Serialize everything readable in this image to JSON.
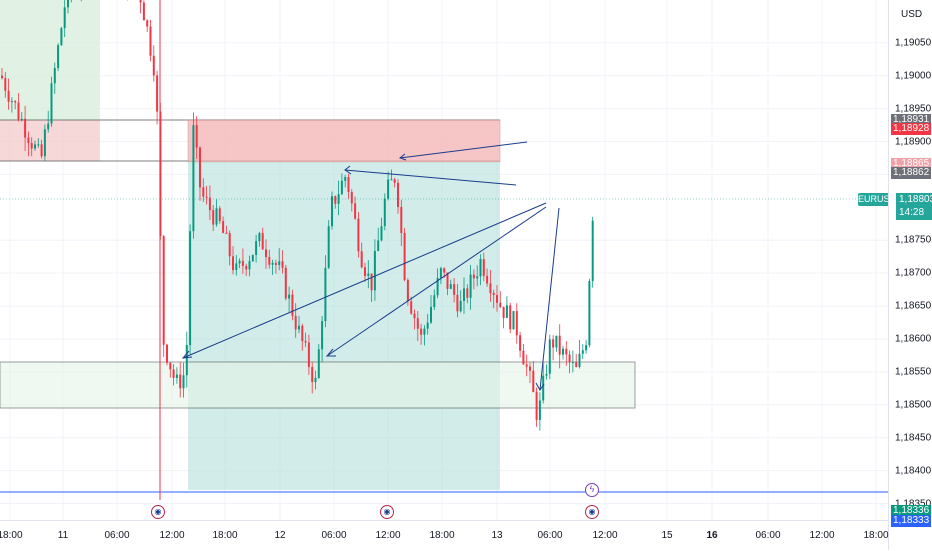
{
  "currency": "USD",
  "symbol": "EURUSD",
  "current_price": "1,18803",
  "countdown": "14:28",
  "price_range": [
    1.18325,
    1.19115
  ],
  "price_axis_labels": [
    "1,19050",
    "1,19000",
    "1,18950",
    "1,18900",
    "1,18850",
    "1,18750",
    "1,18700",
    "1,18650",
    "1,18600",
    "1,18550",
    "1,18500",
    "1,18450",
    "1,18400",
    "1,18350"
  ],
  "price_tags": [
    {
      "label": "1,18931",
      "price": 1.18931,
      "color": "#6e7079"
    },
    {
      "label": "1,18928",
      "price": 1.18928,
      "color": "#f23645"
    },
    {
      "label": "1,18865",
      "price": 1.18865,
      "color": "#f0a1a6"
    },
    {
      "label": "1,18862",
      "price": 1.18862,
      "color": "#6e7079"
    },
    {
      "label": "1,18336",
      "price": 1.18336,
      "color": "#089981"
    },
    {
      "label": "1,18333",
      "price": 1.18333,
      "color": "#2962ff"
    }
  ],
  "time_axis_labels": [
    {
      "label": "18:00",
      "bold": false
    },
    {
      "label": "11",
      "bold": false
    },
    {
      "label": "06:00",
      "bold": false
    },
    {
      "label": "12:00",
      "bold": false
    },
    {
      "label": "18:00",
      "bold": false
    },
    {
      "label": "12",
      "bold": false
    },
    {
      "label": "06:00",
      "bold": false
    },
    {
      "label": "12:00",
      "bold": false
    },
    {
      "label": "18:00",
      "bold": false
    },
    {
      "label": "13",
      "bold": false
    },
    {
      "label": "06:00",
      "bold": false
    },
    {
      "label": "12:00",
      "bold": false
    },
    {
      "label": "15",
      "bold": false
    },
    {
      "label": "16",
      "bold": true
    },
    {
      "label": "06:00",
      "bold": false
    },
    {
      "label": "12:00",
      "bold": false
    },
    {
      "label": "18:00",
      "bold": false
    }
  ],
  "colors": {
    "bull": "#089981",
    "bear": "#f23645",
    "trendline": "#1a3c8e",
    "target_zone": "#b2dfdb",
    "stop_zone": "#f4b4b4"
  },
  "chart_data": {
    "type": "candlestick",
    "description_points": [
      [
        0,
        1.19
      ],
      [
        40,
        1.1887
      ],
      [
        65,
        1.1912
      ],
      [
        100,
        1.1918
      ],
      [
        140,
        1.1912
      ],
      [
        155,
        1.19
      ],
      [
        162,
        1.186
      ],
      [
        175,
        1.1853
      ],
      [
        185,
        1.1855
      ],
      [
        192,
        1.1892
      ],
      [
        200,
        1.1882
      ],
      [
        220,
        1.1877
      ],
      [
        235,
        1.187
      ],
      [
        260,
        1.1875
      ],
      [
        280,
        1.187
      ],
      [
        300,
        1.186
      ],
      [
        315,
        1.1853
      ],
      [
        330,
        1.188
      ],
      [
        345,
        1.1885
      ],
      [
        360,
        1.1873
      ],
      [
        370,
        1.1868
      ],
      [
        385,
        1.1882
      ],
      [
        395,
        1.1885
      ],
      [
        405,
        1.1868
      ],
      [
        420,
        1.186
      ],
      [
        440,
        1.187
      ],
      [
        460,
        1.1865
      ],
      [
        480,
        1.1872
      ],
      [
        500,
        1.1865
      ],
      [
        515,
        1.1862
      ],
      [
        530,
        1.1853
      ],
      [
        537,
        1.1848
      ],
      [
        550,
        1.186
      ],
      [
        560,
        1.1858
      ],
      [
        575,
        1.1855
      ],
      [
        585,
        1.186
      ],
      [
        592,
        1.188
      ]
    ],
    "volatility": 0.00035
  }
}
